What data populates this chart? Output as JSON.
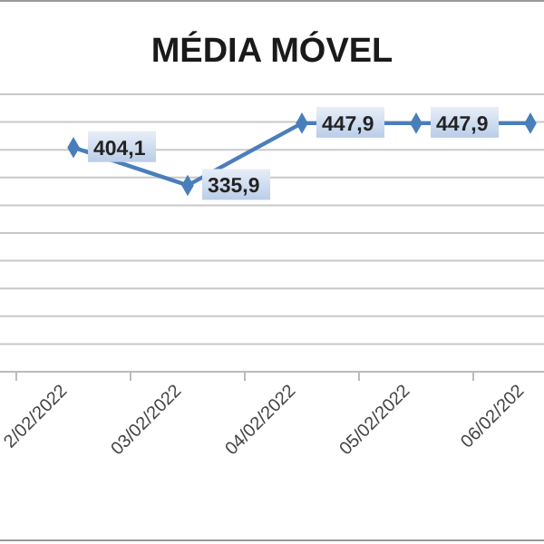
{
  "chart_data": {
    "type": "line",
    "title": "MÉDIA MÓVEL",
    "categories": [
      "2/02/2022",
      "03/02/2022",
      "04/02/2022",
      "05/02/2022",
      "06/02/202"
    ],
    "series": [
      {
        "color": "#4a7ebb",
        "values": [
          404.1,
          335.9,
          447.9,
          447.9,
          447.9
        ],
        "value_labels": [
          "404,1",
          "335,9",
          "447,9",
          "447,9",
          null
        ]
      }
    ],
    "ylim": [
      0,
      500
    ],
    "yticks": [
      {
        "value": 0,
        "label": null
      },
      {
        "value": 50,
        "label": null
      },
      {
        "value": 100,
        "label": null
      },
      {
        "value": 150,
        "label": null
      },
      {
        "value": 200,
        "label": null
      },
      {
        "value": 250,
        "label": null
      },
      {
        "value": 300,
        "label": null
      },
      {
        "value": 350,
        "label": null
      },
      {
        "value": 400,
        "label": null
      },
      {
        "value": 450,
        "label": null
      },
      {
        "value": 500,
        "label": null
      }
    ],
    "tick_labels": "x",
    "grid": "y",
    "marker": "diamond",
    "line_style": "solid"
  }
}
